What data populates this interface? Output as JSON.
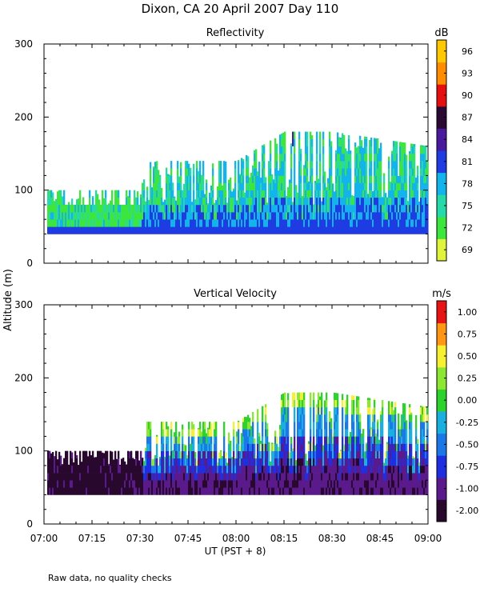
{
  "figure_title": "Dixon, CA 20 April 2007  Day 110",
  "y_label": "Altitude (m)",
  "x_label": "UT  (PST + 8)",
  "footnote": "Raw data, no quality checks",
  "chart_data": [
    {
      "type": "heatmap",
      "title": "Reflectivity",
      "xlabel": "UT  (PST + 8)",
      "ylabel": "Altitude (m)",
      "x_ticks": [
        "07:00",
        "07:15",
        "07:30",
        "07:45",
        "08:00",
        "08:15",
        "08:30",
        "08:45",
        "09:00"
      ],
      "xlim_minutes_after_0700": [
        0,
        120
      ],
      "y_ticks": [
        "0",
        "100",
        "200",
        "300"
      ],
      "ylim_m": [
        0,
        300
      ],
      "colorbar": {
        "unit": "dB",
        "tick_labels": [
          "69",
          "72",
          "75",
          "78",
          "81",
          "84",
          "87",
          "90",
          "93",
          "96"
        ],
        "colors": [
          "#e1f43c",
          "#3ce63c",
          "#26d9a8",
          "#12b4eb",
          "#1e3ce1",
          "#4a1a9e",
          "#2a0a32",
          "#e60f0f",
          "#ff8c00",
          "#ffc800"
        ]
      },
      "echo_base_m": 40,
      "echo_top_profile": [
        {
          "t": 0,
          "top_m": 100
        },
        {
          "t": 30,
          "top_m": 100
        },
        {
          "t": 32,
          "top_m": 140
        },
        {
          "t": 60,
          "top_m": 140
        },
        {
          "t": 75,
          "top_m": 180
        },
        {
          "t": 90,
          "top_m": 180
        },
        {
          "t": 120,
          "top_m": 160
        }
      ]
    },
    {
      "type": "heatmap",
      "title": "Vertical Velocity",
      "xlabel": "UT  (PST + 8)",
      "ylabel": "Altitude (m)",
      "x_ticks": [
        "07:00",
        "07:15",
        "07:30",
        "07:45",
        "08:00",
        "08:15",
        "08:30",
        "08:45",
        "09:00"
      ],
      "xlim_minutes_after_0700": [
        0,
        120
      ],
      "y_ticks": [
        "0",
        "100",
        "200",
        "300"
      ],
      "ylim_m": [
        0,
        300
      ],
      "colorbar": {
        "unit": "m/s",
        "tick_labels": [
          "-2.00",
          "-1.00",
          "-0.75",
          "-0.50",
          "-0.25",
          "0.00",
          "0.25",
          "0.50",
          "0.75",
          "1.00"
        ],
        "colors": [
          "#28082d",
          "#5a1a8c",
          "#1e2ee1",
          "#1c78e6",
          "#19b0e0",
          "#2dd22d",
          "#8ce632",
          "#f5f032",
          "#ff9614",
          "#e61414"
        ]
      },
      "echo_base_m": 40,
      "echo_top_profile": [
        {
          "t": 0,
          "top_m": 100
        },
        {
          "t": 30,
          "top_m": 100
        },
        {
          "t": 32,
          "top_m": 140
        },
        {
          "t": 60,
          "top_m": 140
        },
        {
          "t": 75,
          "top_m": 180
        },
        {
          "t": 90,
          "top_m": 180
        },
        {
          "t": 120,
          "top_m": 160
        }
      ]
    }
  ]
}
